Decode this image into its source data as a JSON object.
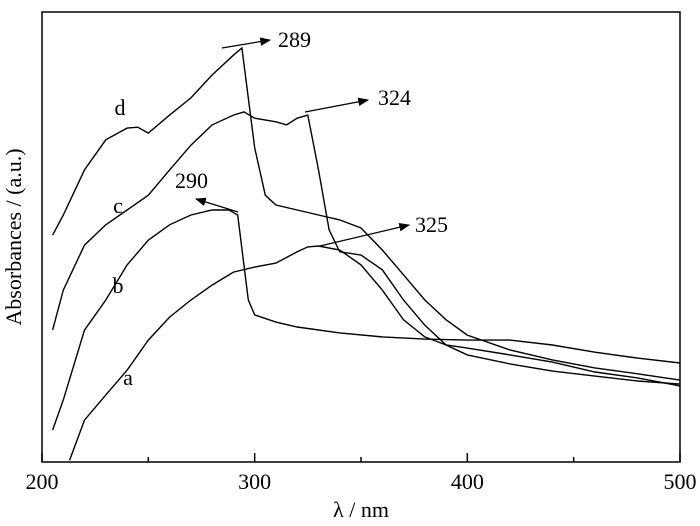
{
  "chart_data": {
    "type": "line",
    "x_label": "λ / nm",
    "y_label": "Absorbances / (a.u.)",
    "xlim": [
      200,
      500
    ],
    "xticks": [
      200,
      300,
      400,
      500
    ],
    "xminorticks": [
      250,
      350,
      450
    ],
    "ylim": [
      0,
      100
    ],
    "annotations": [
      "289",
      "324",
      "290",
      "325"
    ],
    "series": [
      {
        "name": "a",
        "color": "#000000",
        "x": [
          213,
          220,
          230,
          240,
          250,
          260,
          270,
          280,
          290,
          300,
          310,
          320,
          325,
          330,
          340,
          350,
          360,
          370,
          380,
          390,
          400,
          420,
          440,
          460,
          480,
          500
        ],
        "values": [
          0.4,
          9.3,
          14.9,
          20.4,
          27.1,
          32.2,
          36,
          39.3,
          42.2,
          43.3,
          44.2,
          46.7,
          47.8,
          48,
          47.1,
          43.8,
          38.2,
          31.6,
          27.8,
          26,
          25.3,
          23.8,
          22.2,
          20,
          18.7,
          16.9
        ]
      },
      {
        "name": "b",
        "color": "#000000",
        "x": [
          205,
          210,
          220,
          230,
          240,
          250,
          260,
          270,
          280,
          288,
          292,
          297,
          300,
          310,
          320,
          340,
          360,
          380,
          400,
          420,
          440,
          460,
          480,
          500
        ],
        "values": [
          7.1,
          13.8,
          29.3,
          36,
          43.8,
          49.3,
          52.7,
          54.9,
          56,
          56,
          54.9,
          36,
          32.7,
          31.1,
          30,
          28.7,
          27.8,
          27.3,
          27.1,
          27.1,
          26,
          24.4,
          23.1,
          22
        ]
      },
      {
        "name": "c",
        "color": "#000000",
        "x": [
          205,
          210,
          220,
          230,
          240,
          250,
          260,
          270,
          280,
          290,
          295,
          300,
          310,
          315,
          320,
          325,
          330,
          335,
          340,
          350,
          360,
          370,
          380,
          390,
          400,
          420,
          440,
          460,
          480,
          500
        ],
        "values": [
          29.3,
          38.2,
          48.2,
          52.7,
          56,
          59.3,
          64.9,
          70.4,
          74.9,
          77.1,
          77.8,
          76.4,
          75.6,
          74.9,
          76.4,
          77.1,
          64.9,
          51.6,
          46.7,
          46,
          42.7,
          36,
          30.4,
          26,
          23.8,
          21.8,
          20.2,
          19.1,
          18,
          17.3
        ]
      },
      {
        "name": "d",
        "color": "#000000",
        "x": [
          205,
          210,
          220,
          230,
          240,
          245,
          250,
          260,
          270,
          280,
          290,
          294,
          300,
          305,
          310,
          320,
          330,
          340,
          350,
          360,
          370,
          380,
          390,
          400,
          420,
          440,
          460,
          480,
          500
        ],
        "values": [
          50.4,
          54.9,
          64.9,
          71.6,
          74.2,
          74.4,
          73.1,
          77.1,
          80.9,
          86,
          90.4,
          92,
          69.8,
          59.3,
          57.1,
          56,
          54.9,
          53.8,
          52,
          47.1,
          41.6,
          36,
          31.6,
          28.2,
          24.9,
          22.7,
          20.9,
          19.6,
          18.2
        ]
      }
    ]
  }
}
